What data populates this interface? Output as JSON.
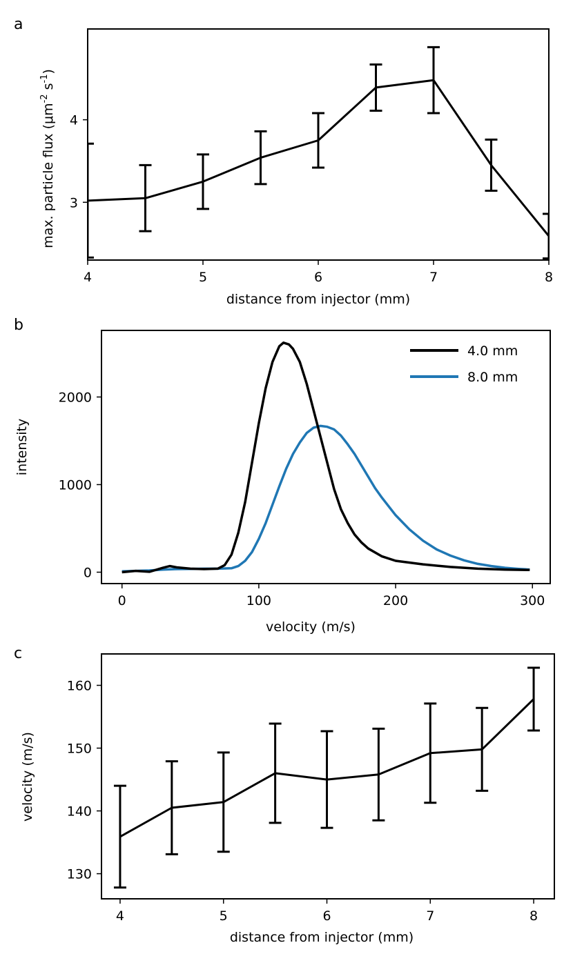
{
  "panels": [
    {
      "letter": "a"
    },
    {
      "letter": "b"
    },
    {
      "letter": "c"
    }
  ],
  "colors": {
    "black_series": "#000000",
    "blue_series": "#1f77b4"
  },
  "chart_data": [
    {
      "type": "line",
      "panel": "a",
      "xlabel": "distance from injector (mm)",
      "ylabel": "max. particle flux (μm",
      "ylabel_sup1": "-2",
      "ylabel_mid": " s",
      "ylabel_sup2": "-1",
      "ylabel_end": ")",
      "xlim": [
        4,
        8
      ],
      "ylim": [
        2.3,
        5.1
      ],
      "xticks": [
        4,
        5,
        6,
        7,
        8
      ],
      "yticks": [
        3,
        4
      ],
      "error_bars": true,
      "series": [
        {
          "x": [
            4,
            4.5,
            5,
            5.5,
            6,
            6.5,
            7,
            7.5,
            8
          ],
          "y": [
            3.02,
            3.05,
            3.25,
            3.54,
            3.75,
            4.39,
            4.48,
            3.45,
            2.59
          ],
          "yerr": [
            0.69,
            0.4,
            0.33,
            0.32,
            0.33,
            0.28,
            0.4,
            0.31,
            0.27
          ]
        }
      ]
    },
    {
      "type": "line",
      "panel": "b",
      "xlabel": "velocity (m/s)",
      "ylabel": "intensity",
      "xlim": [
        -15,
        313
      ],
      "ylim": [
        -130,
        2760
      ],
      "xticks": [
        0,
        100,
        200,
        300
      ],
      "yticks": [
        0,
        1000,
        2000
      ],
      "legend": "top-right",
      "series": [
        {
          "name": "4.0 mm",
          "color": "#000000",
          "x": [
            0,
            10,
            20,
            30,
            35,
            40,
            50,
            60,
            70,
            75,
            80,
            85,
            90,
            95,
            100,
            105,
            110,
            115,
            118,
            122,
            125,
            130,
            135,
            140,
            145,
            150,
            155,
            160,
            165,
            170,
            175,
            180,
            190,
            200,
            220,
            240,
            260,
            280,
            298
          ],
          "y": [
            0,
            15,
            5,
            50,
            70,
            55,
            40,
            35,
            40,
            80,
            200,
            450,
            800,
            1250,
            1700,
            2100,
            2400,
            2580,
            2620,
            2600,
            2550,
            2400,
            2150,
            1850,
            1550,
            1250,
            950,
            720,
            560,
            430,
            340,
            270,
            180,
            130,
            90,
            60,
            40,
            30,
            25
          ]
        },
        {
          "name": "8.0 mm",
          "color": "#1f77b4",
          "x": [
            0,
            10,
            20,
            30,
            40,
            50,
            60,
            70,
            80,
            85,
            90,
            95,
            100,
            105,
            110,
            115,
            120,
            125,
            130,
            135,
            140,
            145,
            150,
            155,
            160,
            165,
            170,
            175,
            180,
            185,
            190,
            200,
            210,
            220,
            230,
            240,
            250,
            260,
            270,
            280,
            290,
            298
          ],
          "y": [
            10,
            15,
            20,
            30,
            35,
            38,
            40,
            40,
            45,
            70,
            130,
            230,
            380,
            560,
            770,
            980,
            1180,
            1350,
            1480,
            1590,
            1650,
            1670,
            1660,
            1630,
            1560,
            1460,
            1350,
            1220,
            1090,
            960,
            850,
            650,
            490,
            360,
            260,
            190,
            135,
            95,
            70,
            50,
            38,
            30
          ]
        }
      ]
    },
    {
      "type": "line",
      "panel": "c",
      "xlabel": "distance from injector (mm)",
      "ylabel": "velocity  (m/s)",
      "xlim": [
        3.82,
        8.2
      ],
      "ylim": [
        126,
        165
      ],
      "xticks": [
        4,
        5,
        6,
        7,
        8
      ],
      "yticks": [
        130,
        140,
        150,
        160
      ],
      "error_bars": true,
      "series": [
        {
          "x": [
            4,
            4.5,
            5,
            5.5,
            6,
            6.5,
            7,
            7.5,
            8
          ],
          "y": [
            135.9,
            140.5,
            141.4,
            146.0,
            145.0,
            145.8,
            149.2,
            149.8,
            157.8
          ],
          "yerr": [
            8.1,
            7.4,
            7.9,
            7.9,
            7.7,
            7.3,
            7.9,
            6.6,
            5.0
          ]
        }
      ]
    }
  ]
}
